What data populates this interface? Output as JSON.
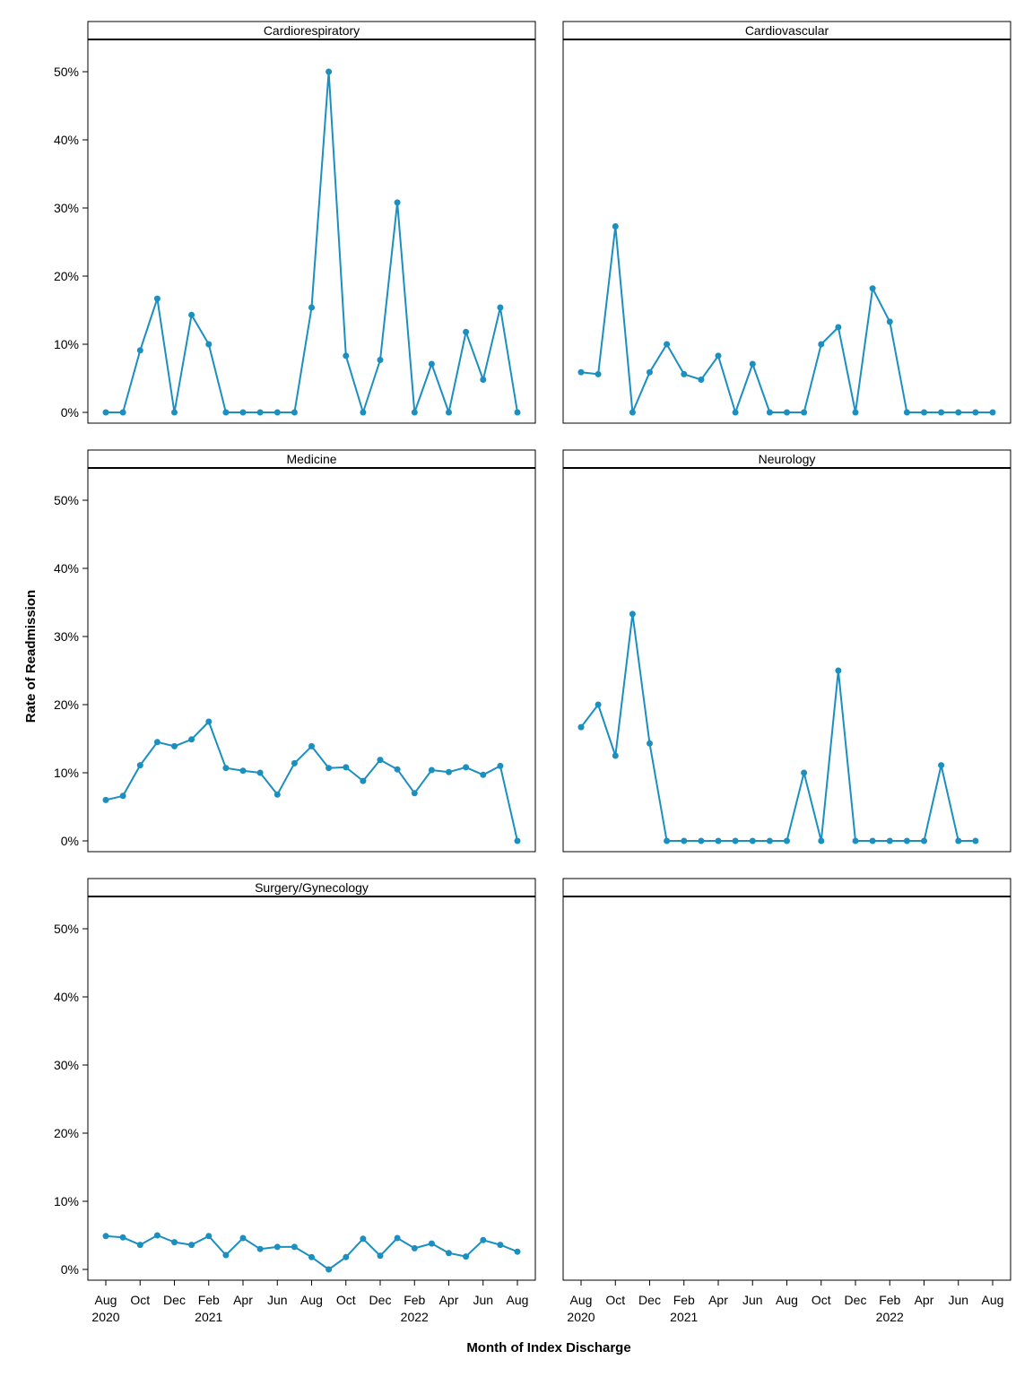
{
  "chart_data": {
    "type": "line",
    "ylabel": "Rate of Readmission",
    "xlabel": "Month of Index Discharge",
    "ylim": [
      0,
      50
    ],
    "y_ticks": [
      "0%",
      "10%",
      "20%",
      "30%",
      "40%",
      "50%"
    ],
    "x": [
      "2020-08",
      "2020-09",
      "2020-10",
      "2020-11",
      "2020-12",
      "2021-01",
      "2021-02",
      "2021-03",
      "2021-04",
      "2021-05",
      "2021-06",
      "2021-07",
      "2021-08",
      "2021-09",
      "2021-10",
      "2021-11",
      "2021-12",
      "2022-01",
      "2022-02",
      "2022-03",
      "2022-04",
      "2022-05",
      "2022-06",
      "2022-07",
      "2022-08"
    ],
    "x_ticks": [
      {
        "x": "2020-08",
        "label": "Aug",
        "year": "2020"
      },
      {
        "x": "2020-10",
        "label": "Oct",
        "year": ""
      },
      {
        "x": "2020-12",
        "label": "Dec",
        "year": ""
      },
      {
        "x": "2021-02",
        "label": "Feb",
        "year": "2021"
      },
      {
        "x": "2021-04",
        "label": "Apr",
        "year": ""
      },
      {
        "x": "2021-06",
        "label": "Jun",
        "year": ""
      },
      {
        "x": "2021-08",
        "label": "Aug",
        "year": ""
      },
      {
        "x": "2021-10",
        "label": "Oct",
        "year": ""
      },
      {
        "x": "2021-12",
        "label": "Dec",
        "year": ""
      },
      {
        "x": "2022-02",
        "label": "Feb",
        "year": "2022"
      },
      {
        "x": "2022-04",
        "label": "Apr",
        "year": ""
      },
      {
        "x": "2022-06",
        "label": "Jun",
        "year": ""
      },
      {
        "x": "2022-08",
        "label": "Aug",
        "year": ""
      }
    ],
    "series_color": "#1a8fc0",
    "grid": false,
    "panels": [
      {
        "name": "Cardiorespiratory",
        "values": [
          0,
          0,
          9.1,
          16.7,
          0,
          14.3,
          10,
          0,
          0,
          0,
          0,
          0,
          15.4,
          50,
          8.3,
          0,
          7.7,
          30.8,
          0,
          7.1,
          0,
          11.8,
          4.8,
          15.4,
          0
        ]
      },
      {
        "name": "Cardiovascular",
        "values": [
          5.9,
          5.6,
          27.3,
          0,
          5.9,
          10,
          5.6,
          4.8,
          8.3,
          0,
          7.1,
          0,
          0,
          0,
          10,
          12.5,
          0,
          18.2,
          13.3,
          0,
          0,
          0,
          0,
          0,
          0
        ]
      },
      {
        "name": "Medicine",
        "values": [
          6,
          6.6,
          11.1,
          14.5,
          13.9,
          14.9,
          17.5,
          10.7,
          10.3,
          10,
          6.8,
          11.4,
          13.9,
          10.7,
          10.8,
          8.8,
          11.9,
          10.5,
          7,
          10.4,
          10.1,
          10.8,
          9.7,
          11,
          0
        ]
      },
      {
        "name": "Neurology",
        "values": [
          16.7,
          20,
          12.5,
          33.3,
          14.3,
          0,
          0,
          0,
          0,
          0,
          0,
          0,
          0,
          10,
          0,
          25,
          0,
          0,
          0,
          0,
          0,
          11.1,
          0,
          0,
          null
        ]
      },
      {
        "name": "Surgery/Gynecology",
        "values": [
          4.9,
          4.7,
          3.6,
          5,
          4,
          3.6,
          4.9,
          2.1,
          4.6,
          3,
          3.3,
          3.3,
          1.8,
          0,
          1.8,
          4.5,
          2,
          4.6,
          3.1,
          3.8,
          2.4,
          1.9,
          4.3,
          3.6,
          2.6
        ]
      },
      {
        "name": "",
        "values": []
      }
    ]
  }
}
